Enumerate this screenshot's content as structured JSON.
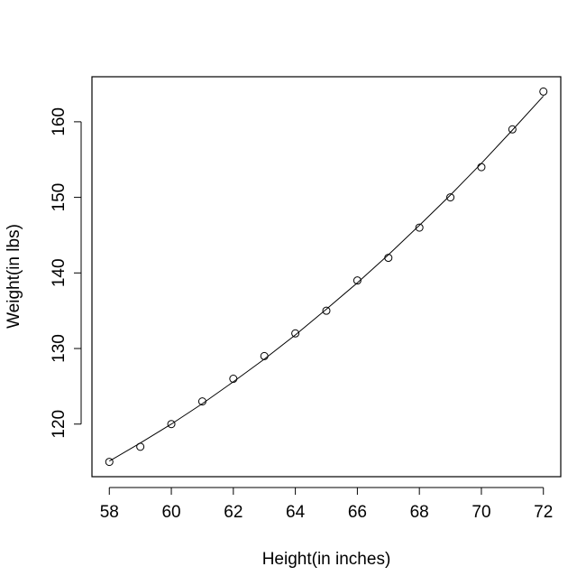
{
  "chart_data": {
    "type": "scatter",
    "xlabel": "Height(in inches)",
    "ylabel": "Weight(in lbs)",
    "x": [
      58,
      59,
      60,
      61,
      62,
      63,
      64,
      65,
      66,
      67,
      68,
      69,
      70,
      71,
      72
    ],
    "series": [
      {
        "style": "points",
        "color": "#000000",
        "values": [
          115,
          117,
          120,
          123,
          126,
          129,
          132,
          135,
          139,
          142,
          146,
          150,
          154,
          159,
          164
        ]
      },
      {
        "style": "line",
        "color": "#000000",
        "values": [
          115.1,
          117.5,
          120.0,
          122.7,
          125.6,
          128.6,
          131.8,
          135.2,
          138.7,
          142.4,
          146.3,
          150.3,
          154.5,
          158.9,
          163.4
        ]
      }
    ],
    "xlim": [
      57.44,
      72.56
    ],
    "ylim": [
      113.04,
      165.96
    ],
    "xticks": [
      58,
      60,
      62,
      64,
      66,
      68,
      70,
      72
    ],
    "yticks": [
      120,
      130,
      140,
      150,
      160
    ]
  }
}
